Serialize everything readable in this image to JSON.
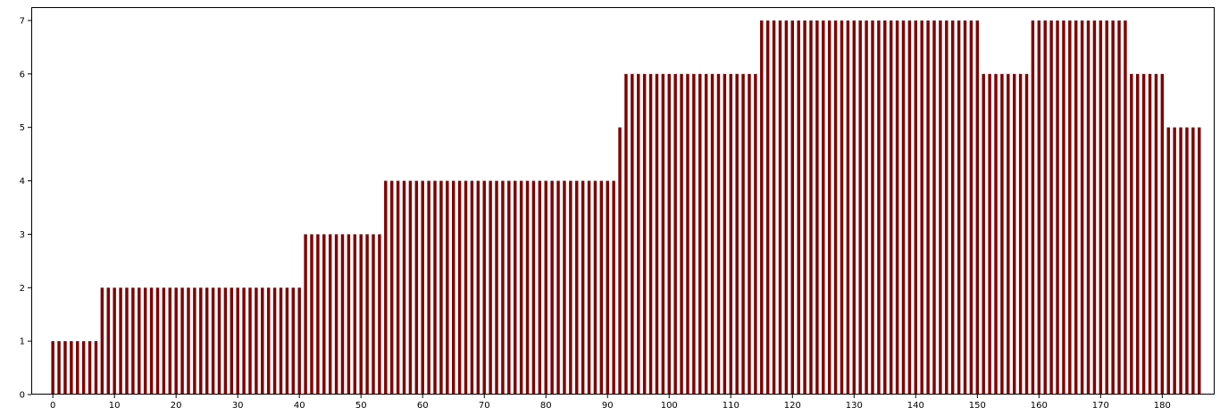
{
  "chart_data": {
    "type": "bar",
    "title": "",
    "xlabel": "",
    "ylabel": "",
    "bar_color": "#800000",
    "x_start": 0,
    "x_step": 1,
    "xlim": [
      -3.5,
      188.5
    ],
    "ylim": [
      0,
      7.25
    ],
    "x_ticks": [
      0,
      10,
      20,
      30,
      40,
      50,
      60,
      70,
      80,
      90,
      100,
      110,
      120,
      130,
      140,
      150,
      160,
      170,
      180
    ],
    "y_ticks": [
      0,
      1,
      2,
      3,
      4,
      5,
      6,
      7
    ],
    "grid": false,
    "legend": "none",
    "values": [
      1,
      1,
      1,
      1,
      1,
      1,
      1,
      1,
      2,
      2,
      2,
      2,
      2,
      2,
      2,
      2,
      2,
      2,
      2,
      2,
      2,
      2,
      2,
      2,
      2,
      2,
      2,
      2,
      2,
      2,
      2,
      2,
      2,
      2,
      2,
      2,
      2,
      2,
      2,
      2,
      2,
      3,
      3,
      3,
      3,
      3,
      3,
      3,
      3,
      3,
      3,
      3,
      3,
      3,
      4,
      4,
      4,
      4,
      4,
      4,
      4,
      4,
      4,
      4,
      4,
      4,
      4,
      4,
      4,
      4,
      4,
      4,
      4,
      4,
      4,
      4,
      4,
      4,
      4,
      4,
      4,
      4,
      4,
      4,
      4,
      4,
      4,
      4,
      4,
      4,
      4,
      4,
      5,
      6,
      6,
      6,
      6,
      6,
      6,
      6,
      6,
      6,
      6,
      6,
      6,
      6,
      6,
      6,
      6,
      6,
      6,
      6,
      6,
      6,
      6,
      7,
      7,
      7,
      7,
      7,
      7,
      7,
      7,
      7,
      7,
      7,
      7,
      7,
      7,
      7,
      7,
      7,
      7,
      7,
      7,
      7,
      7,
      7,
      7,
      7,
      7,
      7,
      7,
      7,
      7,
      7,
      7,
      7,
      7,
      7,
      7,
      6,
      6,
      6,
      6,
      6,
      6,
      6,
      6,
      7,
      7,
      7,
      7,
      7,
      7,
      7,
      7,
      7,
      7,
      7,
      7,
      7,
      7,
      7,
      7,
      6,
      6,
      6,
      6,
      6,
      6,
      5,
      5,
      5,
      5,
      5,
      5
    ]
  }
}
